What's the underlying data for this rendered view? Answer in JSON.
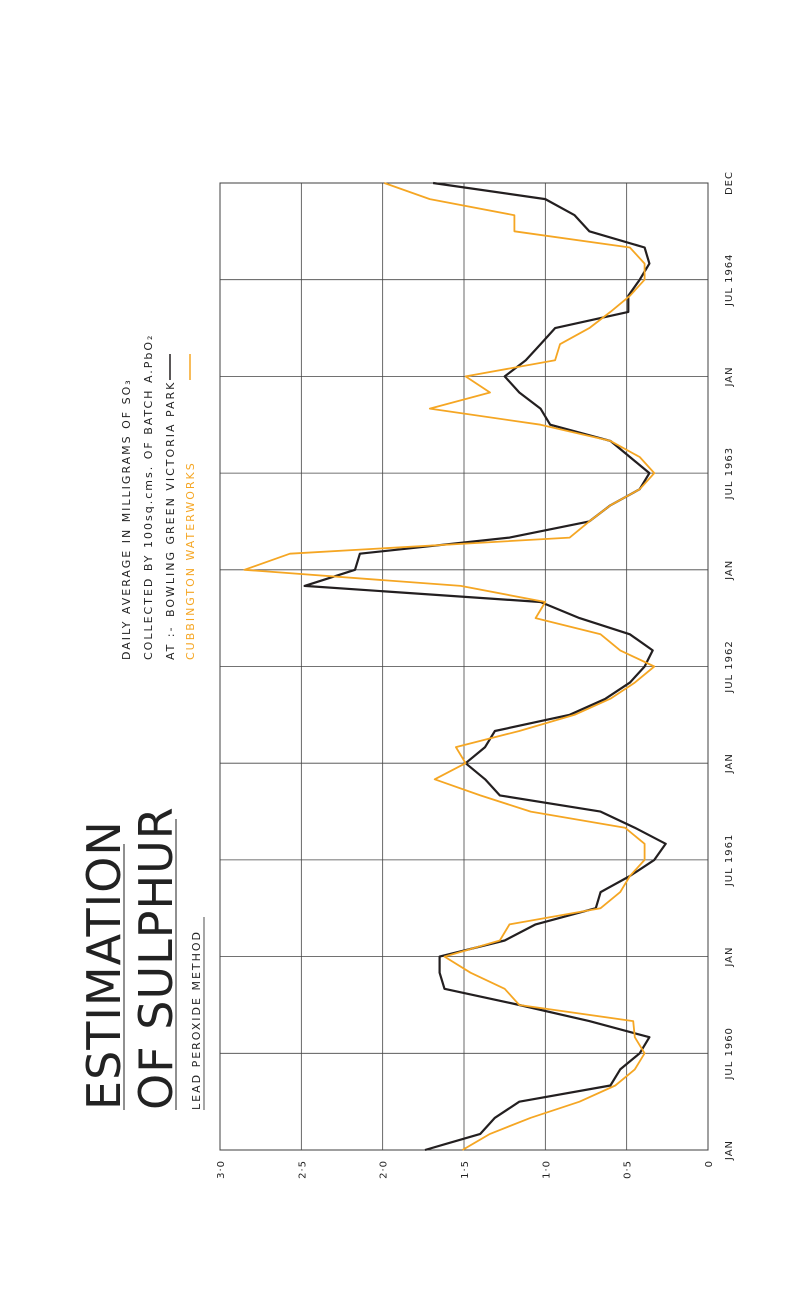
{
  "chart_data": {
    "type": "line",
    "title": [
      "ESTIMATION",
      "OF SULPHUR"
    ],
    "subtitle": "LEAD PEROXIDE METHOD",
    "annotations": [
      "DAILY AVERAGE IN MILLIGRAMS OF SO₃",
      "COLLECTED BY 100sq.cms. OF BATCH A.PbO₂",
      "AT :-"
    ],
    "x": [
      0,
      1,
      2,
      3,
      4,
      5,
      6,
      7,
      8,
      9,
      10,
      11,
      12,
      13,
      14,
      15,
      16,
      17,
      18,
      19,
      20,
      21,
      22,
      23,
      24,
      25,
      26,
      27,
      28,
      29,
      30,
      31,
      32,
      33,
      34,
      35,
      36,
      37,
      38,
      39,
      40,
      41,
      42,
      43,
      44,
      45,
      46,
      47,
      48,
      49,
      50,
      51,
      52,
      53,
      54,
      55,
      56,
      57,
      58,
      59,
      60
    ],
    "xlim": [
      0,
      60
    ],
    "xticks": [
      {
        "value": 0,
        "label": "JAN"
      },
      {
        "value": 6,
        "label": "JUL 1960"
      },
      {
        "value": 12,
        "label": "JAN"
      },
      {
        "value": 18,
        "label": "JUL 1961"
      },
      {
        "value": 24,
        "label": "JAN"
      },
      {
        "value": 30,
        "label": "JUL 1962"
      },
      {
        "value": 36,
        "label": "JAN"
      },
      {
        "value": 42,
        "label": "JUL 1963"
      },
      {
        "value": 48,
        "label": "JAN"
      },
      {
        "value": 54,
        "label": "JUL 1964"
      },
      {
        "value": 60,
        "label": "DEC"
      }
    ],
    "ylim": [
      0,
      3
    ],
    "yticks": [
      {
        "value": 3,
        "label": "3·0"
      },
      {
        "value": 2.5,
        "label": "2·5"
      },
      {
        "value": 2,
        "label": "2·0"
      },
      {
        "value": 1.5,
        "label": "1·5"
      },
      {
        "value": 1,
        "label": "1·0"
      },
      {
        "value": 0.5,
        "label": "0·5"
      },
      0
    ],
    "grid": true,
    "series": [
      {
        "name": "BOWLING GREEN VICTORIA PARK",
        "color": "#231f20",
        "values": [
          1.74,
          1.4,
          1.31,
          1.16,
          0.6,
          0.54,
          0.42,
          0.36,
          0.73,
          1.16,
          1.62,
          1.65,
          1.65,
          1.25,
          1.06,
          0.69,
          0.66,
          0.48,
          0.33,
          0.26,
          0.45,
          0.66,
          1.28,
          1.37,
          1.49,
          1.37,
          1.31,
          0.85,
          0.63,
          0.48,
          0.39,
          0.34,
          0.48,
          0.79,
          1.03,
          2.48,
          2.17,
          2.14,
          1.22,
          0.73,
          0.6,
          0.42,
          0.36,
          0.48,
          0.6,
          0.97,
          1.03,
          1.16,
          1.25,
          1.12,
          1.03,
          0.94,
          0.49,
          0.49,
          0.42,
          0.36,
          0.39,
          0.73,
          0.82,
          1.0,
          1.69
        ]
      },
      {
        "name": "CUBBINGTON WATERWORKS",
        "color": "#f5a623",
        "values": [
          1.51,
          1.34,
          1.09,
          0.79,
          0.57,
          0.45,
          0.39,
          0.45,
          0.46,
          1.16,
          1.25,
          1.46,
          1.62,
          1.28,
          1.22,
          0.66,
          0.54,
          0.48,
          0.39,
          0.39,
          0.51,
          1.09,
          1.4,
          1.68,
          1.49,
          1.55,
          1.16,
          0.82,
          0.6,
          0.45,
          0.33,
          0.54,
          0.66,
          1.06,
          1.0,
          1.52,
          2.85,
          2.57,
          0.85,
          0.73,
          0.6,
          0.42,
          0.33,
          0.42,
          0.6,
          1.03,
          1.71,
          1.34,
          1.49,
          0.94,
          0.91,
          0.73,
          0.6,
          0.48,
          0.39,
          0.39,
          0.48,
          1.19,
          1.19,
          1.71,
          1.99
        ]
      }
    ]
  }
}
